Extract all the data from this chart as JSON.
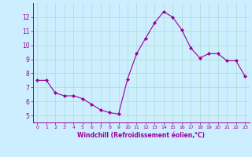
{
  "x": [
    0,
    1,
    2,
    3,
    4,
    5,
    6,
    7,
    8,
    9,
    10,
    11,
    12,
    13,
    14,
    15,
    16,
    17,
    18,
    19,
    20,
    21,
    22,
    23
  ],
  "y": [
    7.5,
    7.5,
    6.6,
    6.4,
    6.4,
    6.2,
    5.8,
    5.4,
    5.2,
    5.1,
    7.6,
    9.4,
    10.5,
    11.6,
    12.4,
    12.0,
    11.1,
    9.8,
    9.1,
    9.4,
    9.4,
    8.9,
    8.9,
    7.8
  ],
  "line_color": "#990099",
  "marker": "D",
  "marker_size": 2,
  "bg_color": "#cceeff",
  "grid_color": "#aaddcc",
  "xlabel": "Windchill (Refroidissement éolien,°C)",
  "xlabel_color": "#990099",
  "tick_color": "#990099",
  "ylim": [
    4.5,
    13.0
  ],
  "xlim": [
    -0.5,
    23.5
  ],
  "yticks": [
    5,
    6,
    7,
    8,
    9,
    10,
    11,
    12
  ],
  "xticks": [
    0,
    1,
    2,
    3,
    4,
    5,
    6,
    7,
    8,
    9,
    10,
    11,
    12,
    13,
    14,
    15,
    16,
    17,
    18,
    19,
    20,
    21,
    22,
    23
  ]
}
